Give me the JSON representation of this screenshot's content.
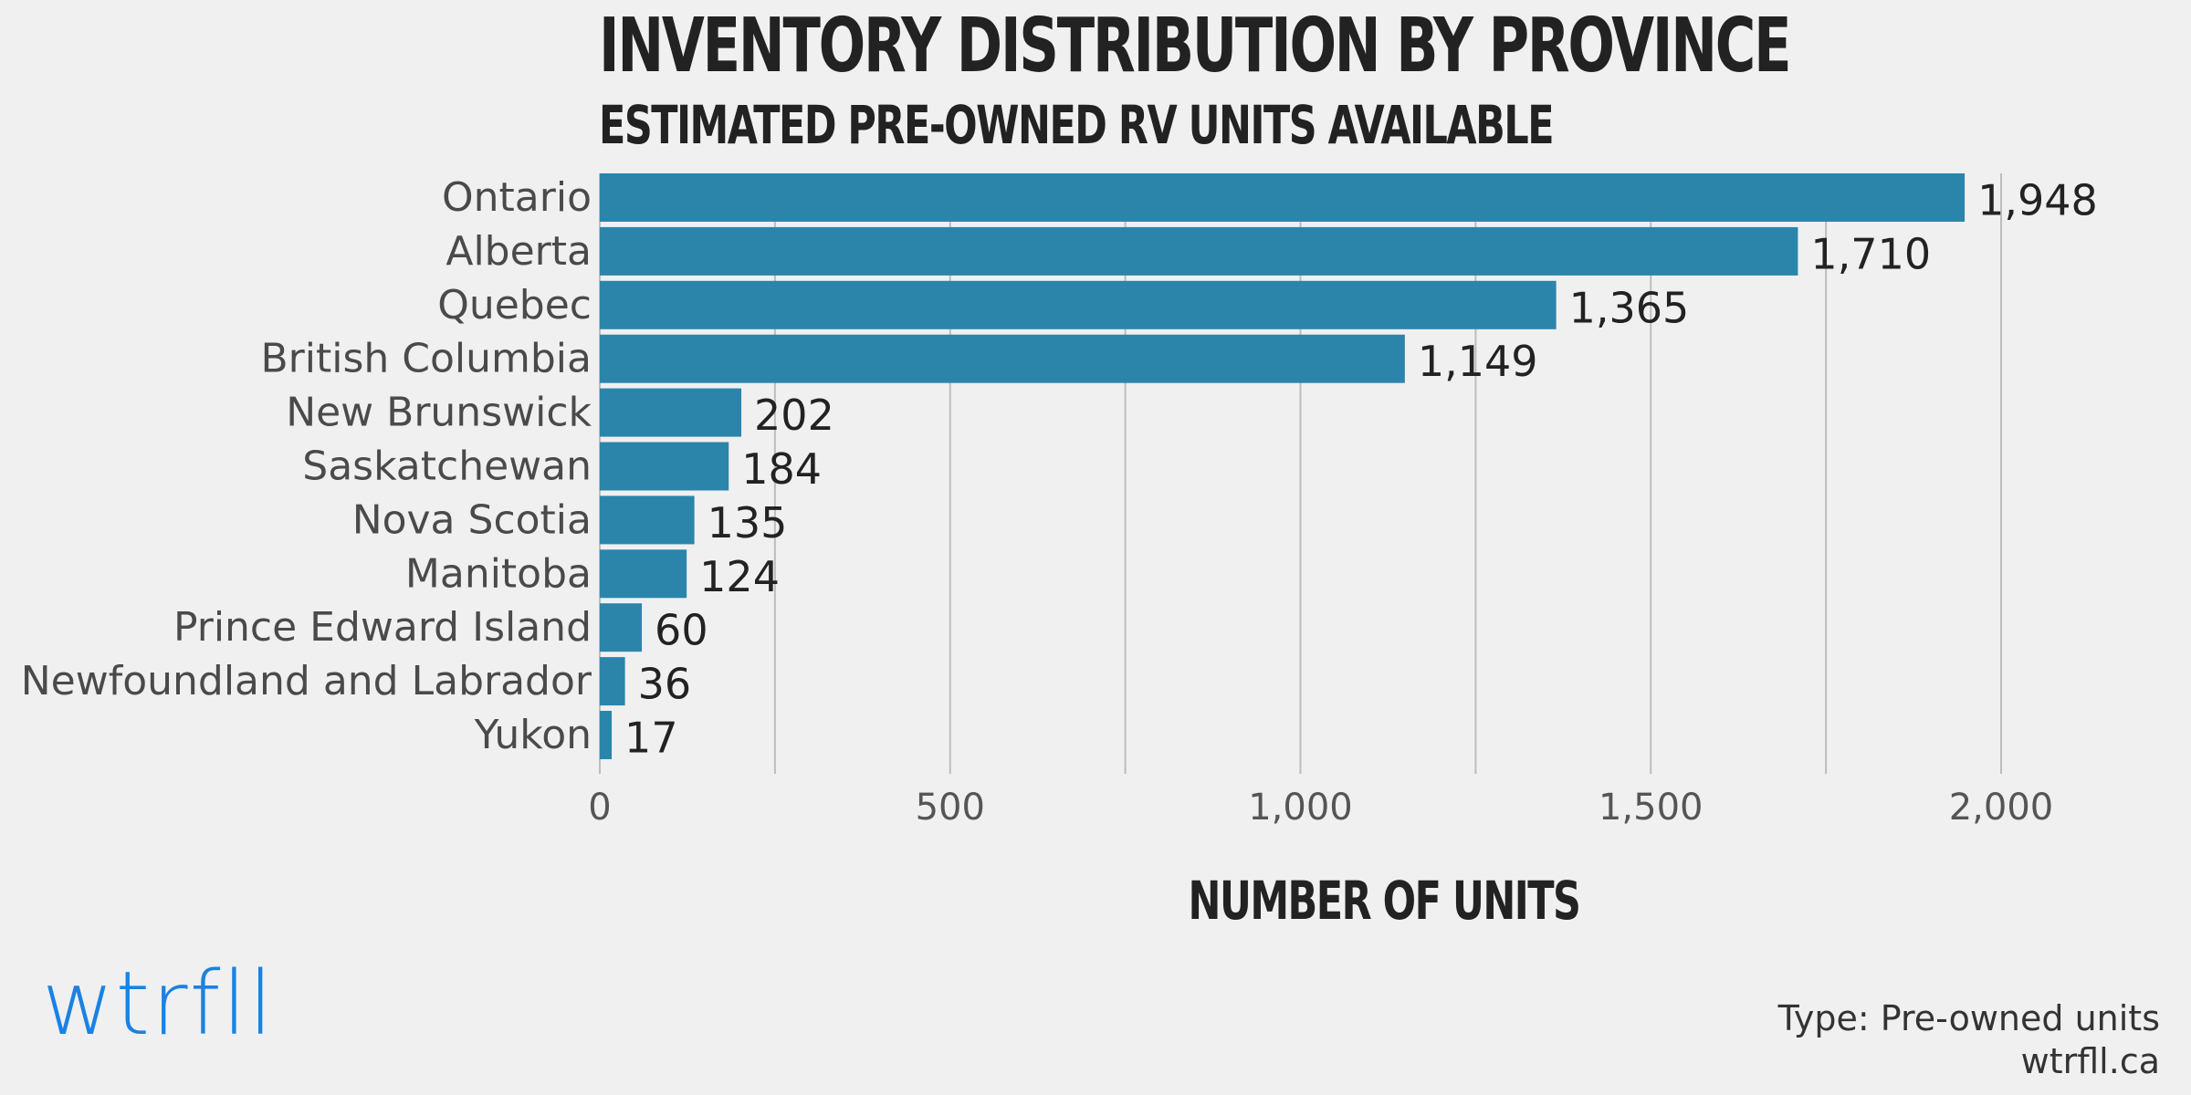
{
  "chart_data": {
    "type": "bar",
    "orientation": "horizontal",
    "title": "INVENTORY DISTRIBUTION BY PROVINCE",
    "subtitle": "ESTIMATED PRE-OWNED RV UNITS AVAILABLE",
    "xlabel": "NUMBER OF UNITS",
    "ylabel": "",
    "categories": [
      "Ontario",
      "Alberta",
      "Quebec",
      "British Columbia",
      "New Brunswick",
      "Saskatchewan",
      "Nova Scotia",
      "Manitoba",
      "Prince Edward Island",
      "Newfoundland and Labrador",
      "Yukon"
    ],
    "values": [
      1948,
      1710,
      1365,
      1149,
      202,
      184,
      135,
      124,
      60,
      36,
      17
    ],
    "value_labels": [
      "1,948",
      "1,710",
      "1,365",
      "1,149",
      "202",
      "184",
      "135",
      "124",
      "60",
      "36",
      "17"
    ],
    "xlim": [
      0,
      2000
    ],
    "xticks": [
      0,
      500,
      1000,
      1500,
      2000
    ],
    "xtick_labels": [
      "0",
      "500",
      "1,000",
      "1,500",
      "2,000"
    ],
    "grid": "vertical",
    "bar_color": "#2b85ab",
    "legend": "none"
  },
  "branding": {
    "logo_text": "wtrfll",
    "logo_color": "#1a82e2"
  },
  "footer": {
    "type_line": "Type: Pre-owned units",
    "site": "wtrfll.ca"
  }
}
